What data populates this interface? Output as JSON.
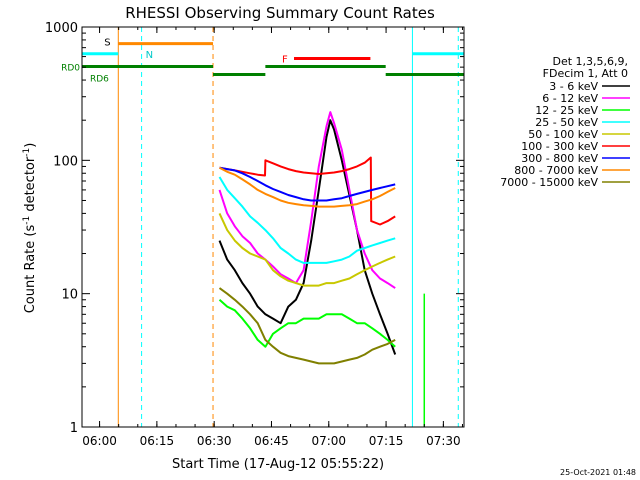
{
  "chart_data": {
    "type": "line",
    "title": "RHESSI Observing Summary Count Rates",
    "xlabel": "Start Time (17-Aug-12 05:55:22)",
    "ylabel_main": "Count Rate (s",
    "ylabel_sup": "-1",
    "ylabel_rest": " detector",
    "ylabel_end": ")",
    "yscale": "log",
    "xlim_minutes": [
      0,
      100
    ],
    "ylim": [
      1,
      1000
    ],
    "x_ticks": [
      {
        "m": 4.6,
        "label": "06:00"
      },
      {
        "m": 19.6,
        "label": "06:15"
      },
      {
        "m": 34.6,
        "label": "06:30"
      },
      {
        "m": 49.6,
        "label": "06:45"
      },
      {
        "m": 64.6,
        "label": "07:00"
      },
      {
        "m": 79.6,
        "label": "07:15"
      },
      {
        "m": 94.6,
        "label": "07:30"
      }
    ],
    "y_ticks": [
      {
        "v": 1,
        "label": "1"
      },
      {
        "v": 10,
        "label": "10"
      },
      {
        "v": 100,
        "label": "100"
      },
      {
        "v": 1000,
        "label": "1000"
      }
    ],
    "legend_header": [
      "Det 1,3,5,6,9,",
      "FDecim 1, Att 0"
    ],
    "series": [
      {
        "name": "3 - 6 keV",
        "color": "#000000",
        "points": [
          [
            36,
            25
          ],
          [
            38,
            18
          ],
          [
            40,
            15
          ],
          [
            42,
            12
          ],
          [
            44,
            10
          ],
          [
            46,
            8
          ],
          [
            48,
            7
          ],
          [
            50,
            6.5
          ],
          [
            52,
            6
          ],
          [
            54,
            8
          ],
          [
            56,
            9
          ],
          [
            58,
            12
          ],
          [
            60,
            25
          ],
          [
            62,
            60
          ],
          [
            64,
            150
          ],
          [
            65,
            200
          ],
          [
            66,
            170
          ],
          [
            68,
            100
          ],
          [
            70,
            55
          ],
          [
            72,
            30
          ],
          [
            74,
            15
          ],
          [
            76,
            10
          ],
          [
            78,
            7
          ],
          [
            80,
            5
          ],
          [
            82,
            3.5
          ]
        ]
      },
      {
        "name": "6 - 12 keV",
        "color": "#ff00ff",
        "points": [
          [
            36,
            60
          ],
          [
            38,
            40
          ],
          [
            40,
            32
          ],
          [
            42,
            27
          ],
          [
            44,
            24
          ],
          [
            46,
            20
          ],
          [
            48,
            18
          ],
          [
            50,
            16
          ],
          [
            52,
            14
          ],
          [
            54,
            13
          ],
          [
            56,
            12
          ],
          [
            58,
            15
          ],
          [
            60,
            35
          ],
          [
            62,
            90
          ],
          [
            64,
            180
          ],
          [
            65,
            230
          ],
          [
            66,
            190
          ],
          [
            68,
            120
          ],
          [
            70,
            60
          ],
          [
            72,
            30
          ],
          [
            74,
            20
          ],
          [
            76,
            15
          ],
          [
            78,
            13
          ],
          [
            80,
            12
          ],
          [
            82,
            11
          ]
        ]
      },
      {
        "name": "12 - 25 keV",
        "color": "#00ff00",
        "points": [
          [
            36,
            9
          ],
          [
            38,
            8
          ],
          [
            40,
            7.5
          ],
          [
            42,
            6.5
          ],
          [
            44,
            5.5
          ],
          [
            46,
            4.5
          ],
          [
            48,
            4
          ],
          [
            50,
            5
          ],
          [
            52,
            5.5
          ],
          [
            54,
            6
          ],
          [
            56,
            6
          ],
          [
            58,
            6.5
          ],
          [
            60,
            6.5
          ],
          [
            62,
            6.5
          ],
          [
            64,
            7
          ],
          [
            66,
            7
          ],
          [
            68,
            7
          ],
          [
            70,
            6.5
          ],
          [
            72,
            6
          ],
          [
            74,
            6
          ],
          [
            76,
            5.5
          ],
          [
            78,
            5
          ],
          [
            80,
            4.5
          ],
          [
            82,
            4
          ]
        ]
      },
      {
        "name": "25 - 50 keV",
        "color": "#00ffff",
        "points": [
          [
            36,
            75
          ],
          [
            38,
            60
          ],
          [
            40,
            52
          ],
          [
            42,
            45
          ],
          [
            44,
            38
          ],
          [
            46,
            34
          ],
          [
            48,
            30
          ],
          [
            50,
            26
          ],
          [
            52,
            22
          ],
          [
            54,
            20
          ],
          [
            56,
            18
          ],
          [
            58,
            17
          ],
          [
            60,
            17
          ],
          [
            62,
            17
          ],
          [
            64,
            17
          ],
          [
            66,
            17.5
          ],
          [
            68,
            18
          ],
          [
            70,
            19
          ],
          [
            72,
            21
          ],
          [
            74,
            22
          ],
          [
            76,
            23
          ],
          [
            78,
            24
          ],
          [
            80,
            25
          ],
          [
            82,
            26
          ]
        ]
      },
      {
        "name": "50 - 100 keV",
        "color": "#c8c800",
        "points": [
          [
            36,
            40
          ],
          [
            38,
            30
          ],
          [
            40,
            25
          ],
          [
            42,
            22
          ],
          [
            44,
            20
          ],
          [
            46,
            19
          ],
          [
            48,
            18
          ],
          [
            50,
            15
          ],
          [
            52,
            13.5
          ],
          [
            54,
            12.5
          ],
          [
            56,
            12
          ],
          [
            58,
            11.5
          ],
          [
            60,
            11.5
          ],
          [
            62,
            11.5
          ],
          [
            64,
            12
          ],
          [
            66,
            12
          ],
          [
            68,
            12.5
          ],
          [
            70,
            13
          ],
          [
            72,
            14
          ],
          [
            74,
            15
          ],
          [
            76,
            16
          ],
          [
            78,
            17
          ],
          [
            80,
            18
          ],
          [
            82,
            19
          ]
        ]
      },
      {
        "name": "100 - 300 keV",
        "color": "#ff0000",
        "points": [
          [
            36,
            88
          ],
          [
            38,
            86
          ],
          [
            40,
            84
          ],
          [
            42,
            82
          ],
          [
            44,
            80
          ],
          [
            46,
            78
          ],
          [
            47.9,
            77
          ],
          [
            48,
            100
          ],
          [
            50,
            95
          ],
          [
            52,
            90
          ],
          [
            54,
            86
          ],
          [
            56,
            83
          ],
          [
            58,
            81
          ],
          [
            60,
            80
          ],
          [
            62,
            79
          ],
          [
            64,
            80
          ],
          [
            66,
            81
          ],
          [
            68,
            83
          ],
          [
            70,
            86
          ],
          [
            72,
            90
          ],
          [
            74,
            96
          ],
          [
            75.6,
            105
          ],
          [
            75.7,
            35
          ],
          [
            78,
            33
          ],
          [
            80,
            35
          ],
          [
            82,
            38
          ]
        ]
      },
      {
        "name": "300 - 800 keV",
        "color": "#0000ff",
        "points": [
          [
            36,
            88
          ],
          [
            38,
            86
          ],
          [
            40,
            84
          ],
          [
            42,
            80
          ],
          [
            44,
            75
          ],
          [
            46,
            70
          ],
          [
            48,
            65
          ],
          [
            50,
            61
          ],
          [
            52,
            58
          ],
          [
            54,
            55
          ],
          [
            56,
            53
          ],
          [
            58,
            51
          ],
          [
            60,
            50
          ],
          [
            62,
            50
          ],
          [
            64,
            50
          ],
          [
            66,
            51
          ],
          [
            68,
            52
          ],
          [
            70,
            54
          ],
          [
            72,
            56
          ],
          [
            74,
            58
          ],
          [
            76,
            60
          ],
          [
            78,
            62
          ],
          [
            80,
            64
          ],
          [
            82,
            66
          ]
        ]
      },
      {
        "name": "800 - 7000 keV",
        "color": "#ff8800",
        "points": [
          [
            36,
            88
          ],
          [
            38,
            82
          ],
          [
            40,
            78
          ],
          [
            42,
            72
          ],
          [
            44,
            66
          ],
          [
            46,
            60
          ],
          [
            48,
            56
          ],
          [
            50,
            53
          ],
          [
            52,
            50
          ],
          [
            54,
            48
          ],
          [
            56,
            47
          ],
          [
            58,
            46
          ],
          [
            60,
            45.5
          ],
          [
            62,
            45
          ],
          [
            64,
            45
          ],
          [
            66,
            45
          ],
          [
            68,
            45.5
          ],
          [
            70,
            46
          ],
          [
            72,
            47
          ],
          [
            74,
            49
          ],
          [
            76,
            51
          ],
          [
            78,
            54
          ],
          [
            80,
            58
          ],
          [
            82,
            62
          ]
        ]
      },
      {
        "name": "7000 - 15000 keV",
        "color": "#808000",
        "points": [
          [
            36,
            11
          ],
          [
            38,
            10
          ],
          [
            40,
            9
          ],
          [
            42,
            8
          ],
          [
            44,
            7
          ],
          [
            46,
            6
          ],
          [
            48,
            4.5
          ],
          [
            50,
            4
          ],
          [
            52,
            3.6
          ],
          [
            54,
            3.4
          ],
          [
            56,
            3.3
          ],
          [
            58,
            3.2
          ],
          [
            60,
            3.1
          ],
          [
            62,
            3
          ],
          [
            64,
            3
          ],
          [
            66,
            3
          ],
          [
            68,
            3.1
          ],
          [
            70,
            3.2
          ],
          [
            72,
            3.3
          ],
          [
            74,
            3.5
          ],
          [
            76,
            3.8
          ],
          [
            78,
            4
          ],
          [
            80,
            4.2
          ],
          [
            82,
            4.5
          ]
        ]
      }
    ],
    "flags": {
      "S_label": "S",
      "N_label": "N",
      "F_label": "F",
      "RD0_label": "RD0",
      "RD6_label": "RD6",
      "cyan_segments": [
        [
          0,
          9.5
        ],
        [
          86.5,
          100
        ]
      ],
      "cyan_level": 630,
      "orange_segment": [
        9.5,
        34.3
      ],
      "orange_level": 750,
      "red_segment": [
        55.5,
        75.5
      ],
      "red_level": 580,
      "green_segments": [
        [
          0,
          34.3,
          505
        ],
        [
          34.3,
          48,
          440
        ],
        [
          48,
          79.5,
          505
        ],
        [
          79.5,
          100,
          440
        ]
      ],
      "orange_vlines": [
        9.5,
        34.3
      ],
      "cyan_vlines": [
        0,
        15.6,
        86.5,
        98.5
      ],
      "green_vline": 89.6
    },
    "footer_date": "25-Oct-2021 01:48"
  }
}
